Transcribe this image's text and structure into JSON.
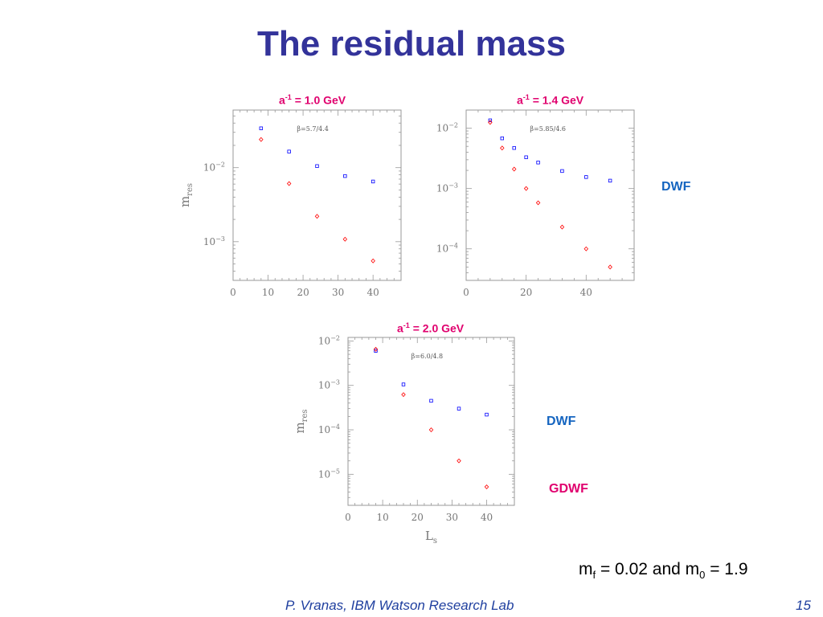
{
  "slide": {
    "title": "The residual mass",
    "params": {
      "m": "m",
      "f_sub": "f",
      "mid": " = 0.02 and m",
      "zero_sub": "0",
      "end": " = 1.9"
    },
    "footer": "P. Vranas, IBM Watson Research Lab",
    "page_number": "15"
  },
  "labels": {
    "dwf_top": "DWF",
    "dwf_bottom": "DWF",
    "gdwf": "GDWF"
  },
  "colors": {
    "title": "#33339a",
    "heading": "#e0006e",
    "dwf": "#1565c0",
    "gdwf": "#e0006e",
    "blue_points": "#0000ff",
    "red_points": "#ff0000",
    "axes": "#999999"
  },
  "chart_data": [
    {
      "type": "scatter",
      "heading": {
        "a": "a",
        "sup": "-1",
        "rest": " = 1.0 GeV"
      },
      "annotation": "β=5.7/4.4",
      "ylabel": {
        "main": "m",
        "sub": "res"
      },
      "xlabel": {
        "main": "",
        "sub": ""
      },
      "yscale": "log",
      "xlim": [
        0,
        48
      ],
      "ylim": [
        0.0003,
        0.06
      ],
      "xticks": [
        0,
        10,
        20,
        30,
        40
      ],
      "yticks": [
        {
          "value": 0.01,
          "base": "10",
          "exp": "−2"
        },
        {
          "value": 0.001,
          "base": "10",
          "exp": "−3"
        }
      ],
      "series": [
        {
          "name": "DWF",
          "color": "#0000ff",
          "marker": "square",
          "x": [
            8,
            16,
            24,
            32,
            40
          ],
          "y": [
            0.034,
            0.0165,
            0.0105,
            0.0077,
            0.0065
          ]
        },
        {
          "name": "GDWF",
          "color": "#ff0000",
          "marker": "diamond",
          "x": [
            8,
            16,
            24,
            32,
            40
          ],
          "y": [
            0.024,
            0.0061,
            0.0022,
            0.00108,
            0.00055
          ]
        }
      ]
    },
    {
      "type": "scatter",
      "heading": {
        "a": "a",
        "sup": "-1",
        "rest": " = 1.4 GeV"
      },
      "annotation": "β=5.85/4.6",
      "ylabel": {
        "main": "",
        "sub": ""
      },
      "xlabel": {
        "main": "",
        "sub": ""
      },
      "yscale": "log",
      "xlim": [
        0,
        56
      ],
      "ylim": [
        3e-05,
        0.02
      ],
      "xticks": [
        0,
        20,
        40
      ],
      "yticks": [
        {
          "value": 0.01,
          "base": "10",
          "exp": "−2"
        },
        {
          "value": 0.001,
          "base": "10",
          "exp": "−3"
        },
        {
          "value": 0.0001,
          "base": "10",
          "exp": "−4"
        }
      ],
      "series": [
        {
          "name": "DWF",
          "color": "#0000ff",
          "marker": "square",
          "x": [
            8,
            12,
            16,
            20,
            24,
            32,
            40,
            48
          ],
          "y": [
            0.0135,
            0.0068,
            0.0047,
            0.0033,
            0.0027,
            0.00195,
            0.00155,
            0.00135
          ]
        },
        {
          "name": "GDWF",
          "color": "#ff0000",
          "marker": "diamond",
          "x": [
            8,
            12,
            16,
            20,
            24,
            32,
            40,
            48
          ],
          "y": [
            0.0125,
            0.0047,
            0.0021,
            0.001,
            0.00058,
            0.00023,
            0.0001,
            5e-05
          ]
        }
      ]
    },
    {
      "type": "scatter",
      "heading": {
        "a": "a",
        "sup": "-1",
        "rest": " = 2.0 GeV"
      },
      "annotation": "β=6.0/4.8",
      "ylabel": {
        "main": "m",
        "sub": "res"
      },
      "xlabel": {
        "main": "L",
        "sub": "s"
      },
      "yscale": "log",
      "xlim": [
        0,
        48
      ],
      "ylim": [
        2e-06,
        0.012
      ],
      "xticks": [
        0,
        10,
        20,
        30,
        40
      ],
      "yticks": [
        {
          "value": 0.01,
          "base": "10",
          "exp": "−2"
        },
        {
          "value": 0.001,
          "base": "10",
          "exp": "−3"
        },
        {
          "value": 0.0001,
          "base": "10",
          "exp": "−4"
        },
        {
          "value": 1e-05,
          "base": "10",
          "exp": "−5"
        }
      ],
      "series": [
        {
          "name": "DWF",
          "color": "#0000ff",
          "marker": "square",
          "x": [
            8,
            16,
            24,
            32,
            40
          ],
          "y": [
            0.006,
            0.00105,
            0.00045,
            0.0003,
            0.00022
          ]
        },
        {
          "name": "GDWF",
          "color": "#ff0000",
          "marker": "diamond",
          "x": [
            8,
            16,
            24,
            32,
            40
          ],
          "y": [
            0.0065,
            0.00062,
            0.0001,
            2e-05,
            5.2e-06
          ]
        }
      ]
    }
  ]
}
